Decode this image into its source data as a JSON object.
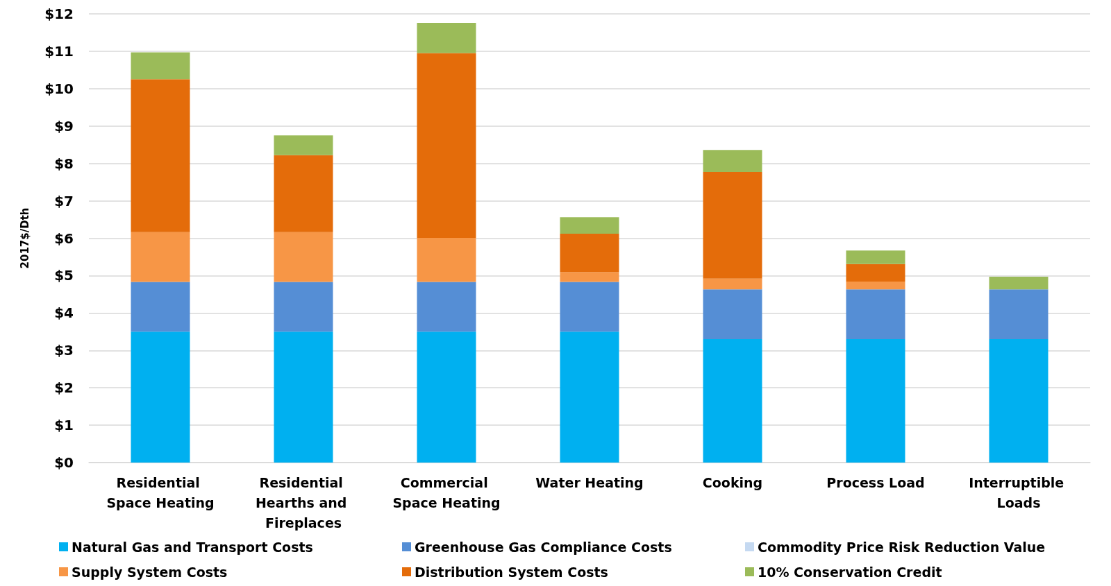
{
  "chart_data": {
    "type": "bar",
    "stacked": true,
    "ylabel": "2017$/Dth",
    "categories": [
      "Residential Space Heating",
      "Residential Hearths and Fireplaces",
      "Commercial Space Heating",
      "Water Heating",
      "Cooking",
      "Process Load",
      "Interruptible Loads"
    ],
    "series": [
      {
        "name": "Natural Gas and Transport Costs",
        "color": "#00b0f0",
        "values": [
          3.5,
          3.5,
          3.5,
          3.5,
          3.3,
          3.3,
          3.3
        ]
      },
      {
        "name": "Greenhouse Gas Compliance Costs",
        "color": "#558ed5",
        "values": [
          1.33,
          1.33,
          1.33,
          1.33,
          1.33,
          1.33,
          1.33
        ]
      },
      {
        "name": "Commodity Price Risk Reduction Value",
        "color": "#c5d9f1",
        "values": [
          0,
          0,
          0,
          0,
          0,
          0,
          0
        ]
      },
      {
        "name": "Supply System Costs",
        "color": "#f79646",
        "values": [
          1.33,
          1.33,
          1.18,
          0.26,
          0.29,
          0.21,
          0
        ]
      },
      {
        "name": "Distribution System Costs",
        "color": "#e46c0a",
        "values": [
          4.09,
          2.06,
          4.94,
          1.03,
          2.85,
          0.47,
          0
        ]
      },
      {
        "name": "10% Conservation Credit",
        "color": "#9bbb59",
        "values": [
          0.72,
          0.53,
          0.81,
          0.44,
          0.59,
          0.36,
          0.34
        ]
      }
    ],
    "ylim": [
      0,
      12
    ],
    "yticks": [
      {
        "value": 0,
        "label": "$0"
      },
      {
        "value": 1,
        "label": "$1"
      },
      {
        "value": 2,
        "label": "$2"
      },
      {
        "value": 3,
        "label": "$3"
      },
      {
        "value": 4,
        "label": "$4"
      },
      {
        "value": 5,
        "label": "$5"
      },
      {
        "value": 6,
        "label": "$6"
      },
      {
        "value": 7,
        "label": "$7"
      },
      {
        "value": 8,
        "label": "$8"
      },
      {
        "value": 9,
        "label": "$9"
      },
      {
        "value": 10,
        "label": "$10"
      },
      {
        "value": 11,
        "label": "$11"
      },
      {
        "value": 12,
        "label": "$12"
      }
    ],
    "grid": "y",
    "legend": "bottom"
  }
}
